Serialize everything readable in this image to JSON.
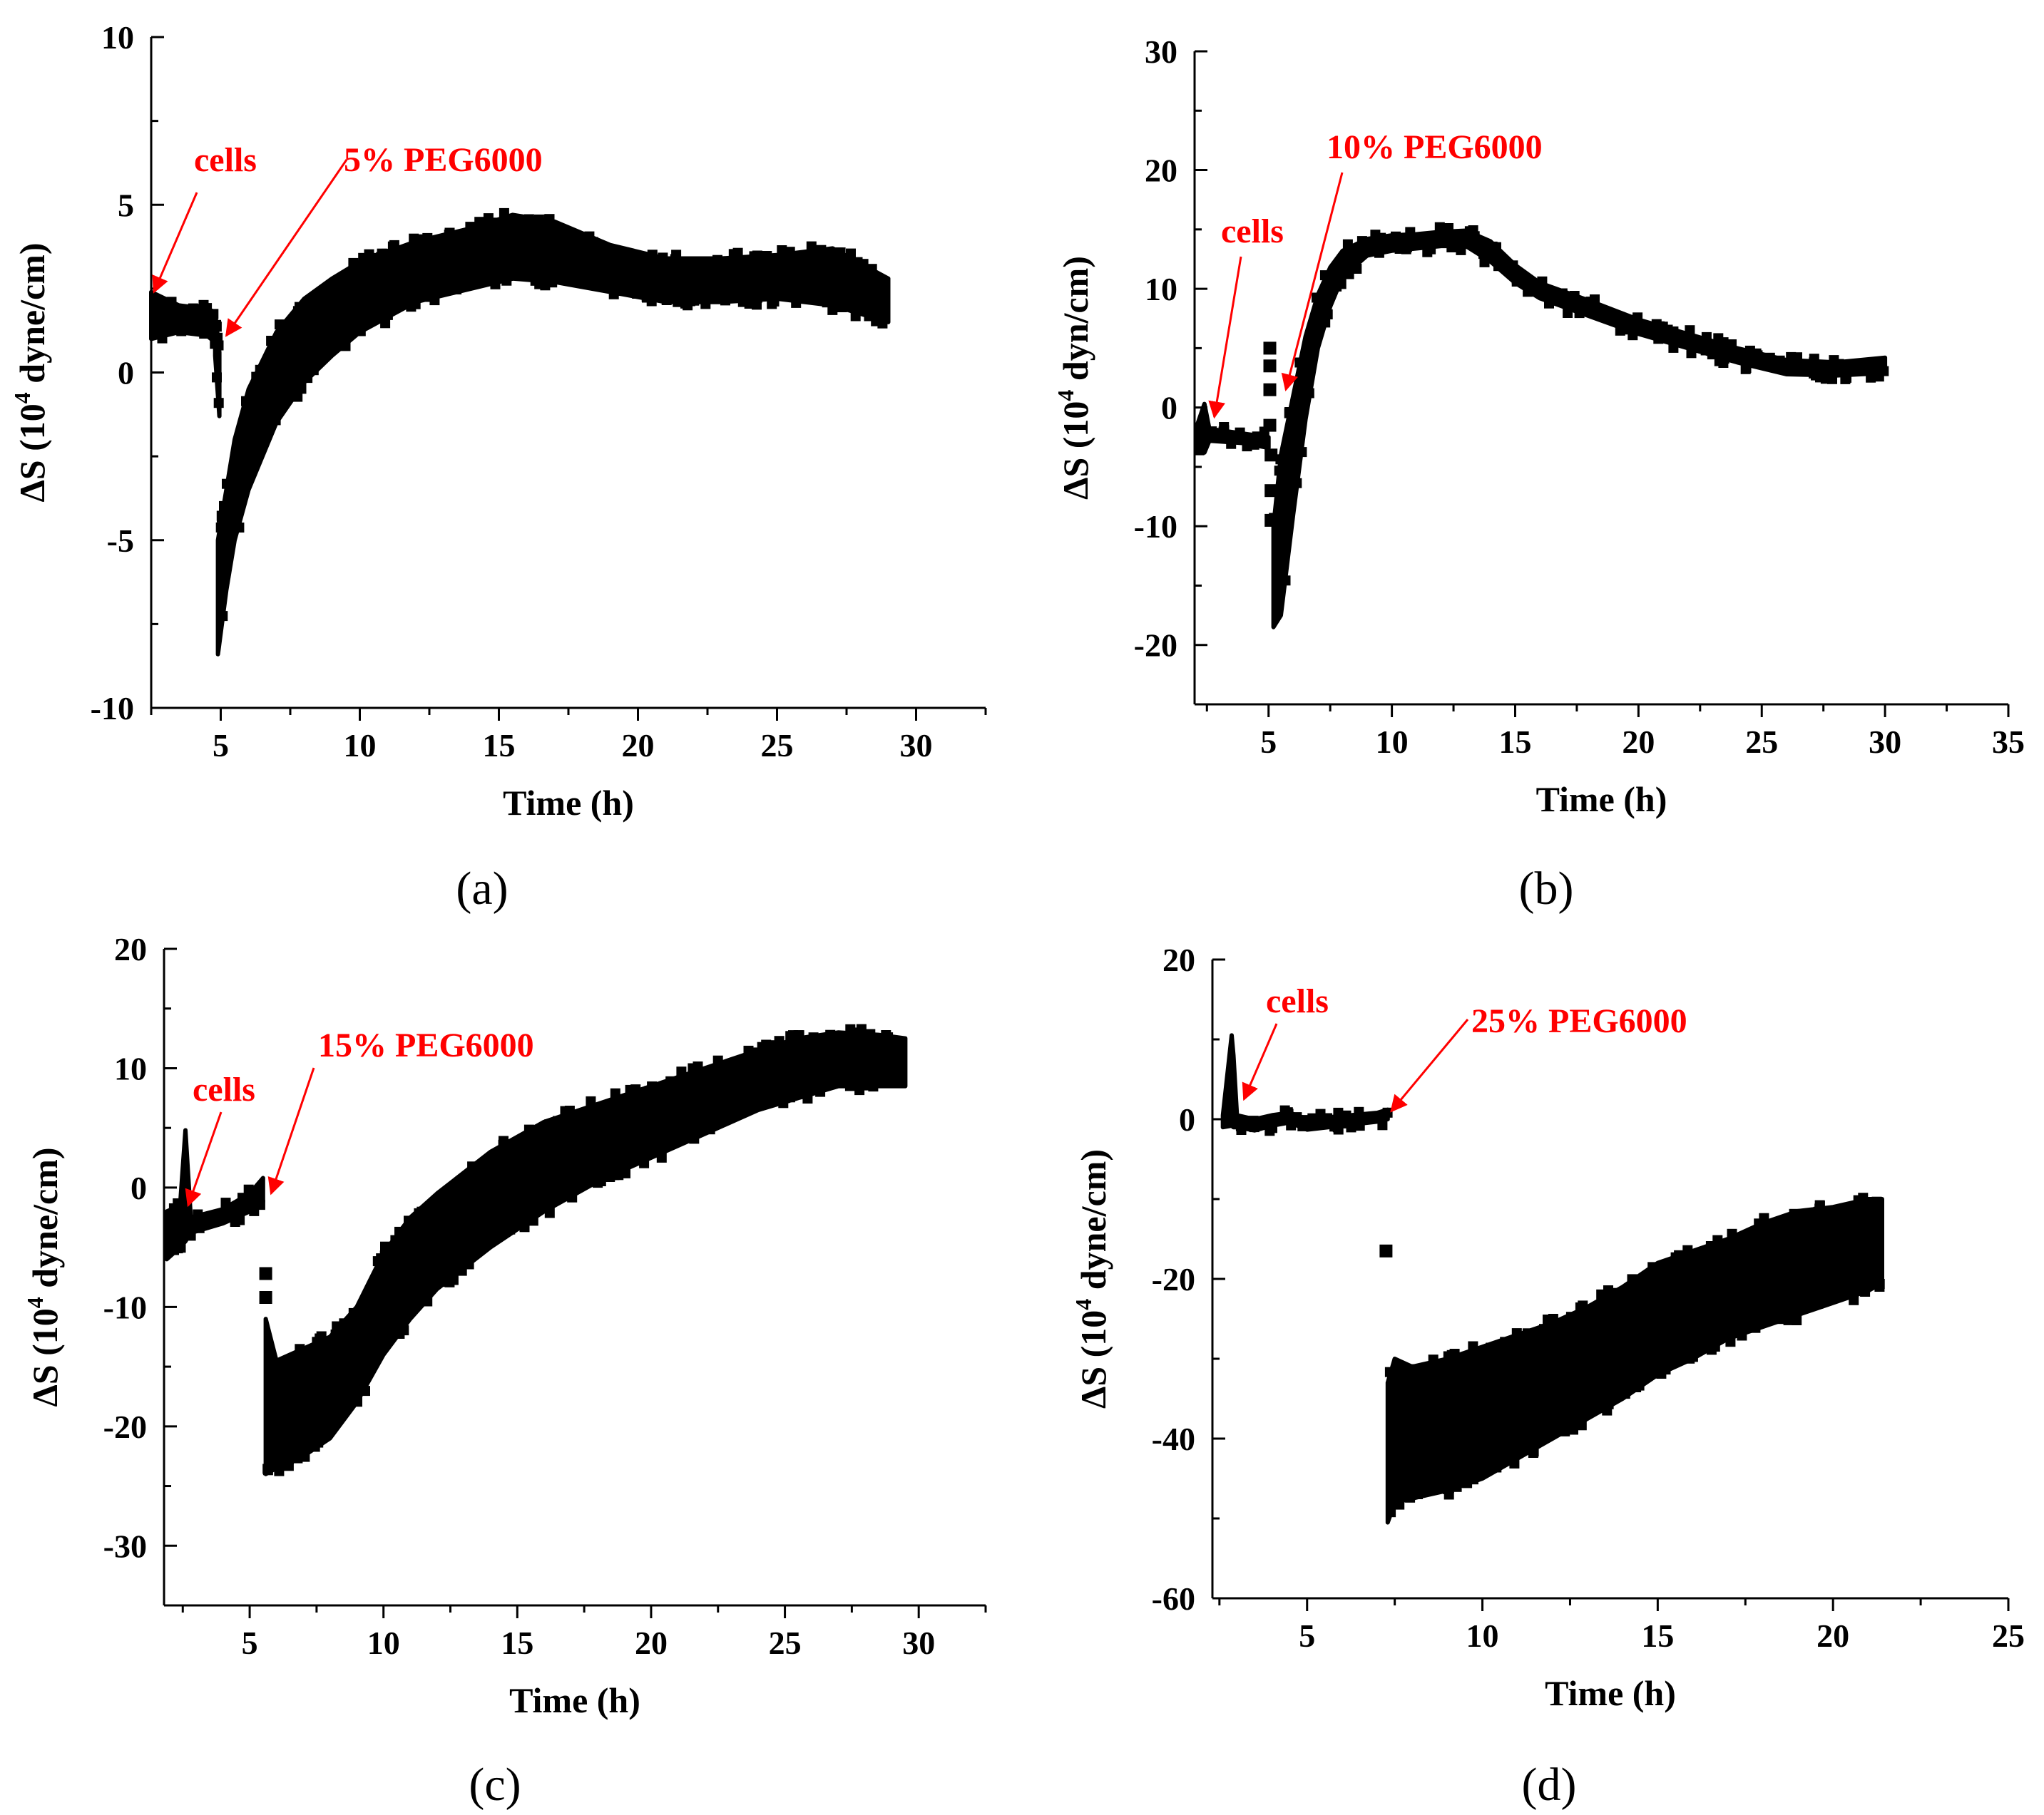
{
  "colors": {
    "data": "#000000",
    "annotation": "#ff0000",
    "axis": "#000000"
  },
  "chart_data": [
    {
      "type": "scatter",
      "caption": "(a)",
      "xlabel": "Time (h)",
      "ylabel": {
        "prefix": "ΔS (10",
        "sup": "4",
        "suffix": " dyne/cm)"
      },
      "xlim": [
        2.5,
        32.5
      ],
      "ylim": [
        -10,
        10
      ],
      "xticks": [
        5,
        10,
        15,
        20,
        25,
        30
      ],
      "yticks": [
        -10,
        -5,
        0,
        5,
        10
      ],
      "annotations": [
        {
          "text": "cells",
          "x": 2.6,
          "y": 2.4
        },
        {
          "text": "5% PEG6000",
          "x": 5.2,
          "y": 1.1
        }
      ],
      "segments": [
        {
          "kind": "band",
          "x": [
            2.5,
            3.5,
            4.5,
            4.8
          ],
          "lo": [
            1.0,
            1.2,
            1.1,
            0.9
          ],
          "hi": [
            2.4,
            2.0,
            1.9,
            1.8
          ]
        },
        {
          "kind": "band",
          "x": [
            4.8,
            4.95
          ],
          "lo": [
            0.5,
            -1.3
          ],
          "hi": [
            1.8,
            0.6
          ]
        },
        {
          "kind": "band",
          "x": [
            4.9,
            5.2,
            5.5,
            6.0,
            7.0,
            8.0,
            9.0,
            10.0,
            12.0,
            14.0,
            15.5,
            17.0,
            19.0,
            21.0,
            23.0,
            25.0,
            27.0,
            29.0
          ],
          "lo": [
            -8.4,
            -6.5,
            -5.0,
            -3.5,
            -1.5,
            -0.3,
            0.5,
            1.2,
            2.1,
            2.5,
            2.8,
            2.7,
            2.4,
            2.1,
            2.1,
            2.2,
            2.0,
            1.5
          ],
          "hi": [
            -5.0,
            -3.5,
            -2.0,
            -0.5,
            1.2,
            2.2,
            2.8,
            3.3,
            3.9,
            4.3,
            4.7,
            4.5,
            3.8,
            3.4,
            3.4,
            3.5,
            3.7,
            2.8
          ]
        }
      ]
    },
    {
      "type": "scatter",
      "caption": "(b)",
      "xlabel": "Time (h)",
      "ylabel": {
        "prefix": "ΔS (10",
        "sup": "4",
        "suffix": " dyn/cm)"
      },
      "xlim": [
        2,
        35
      ],
      "ylim": [
        -25,
        30
      ],
      "xticks": [
        5,
        10,
        15,
        20,
        25,
        30,
        35
      ],
      "yticks": [
        -20,
        -10,
        0,
        10,
        20,
        30
      ],
      "annotations": [
        {
          "text": "cells",
          "x": 2.8,
          "y": -0.8
        },
        {
          "text": "10% PEG6000",
          "x": 5.7,
          "y": 1.5
        }
      ],
      "segments": [
        {
          "kind": "band",
          "x": [
            2.1,
            2.4,
            2.6,
            4.0,
            5.0
          ],
          "lo": [
            -3.5,
            -3.8,
            -2.8,
            -3.0,
            -3.4
          ],
          "hi": [
            -1.5,
            0.3,
            -1.8,
            -2.2,
            -2.5
          ]
        },
        {
          "kind": "points",
          "x": [
            5.05,
            5.05,
            5.05,
            5.05,
            5.1,
            5.1,
            5.1
          ],
          "y": [
            5.0,
            3.5,
            1.5,
            -1.5,
            -4.0,
            -7.0,
            -9.5
          ]
        },
        {
          "kind": "band",
          "x": [
            5.2,
            5.5,
            6.0,
            6.5,
            7.0,
            7.5,
            8.0,
            9.0,
            10.0,
            11.0,
            12.0,
            13.0,
            14.0,
            15.0,
            16.0,
            18.0,
            20.0,
            22.0,
            24.0,
            26.0,
            28.0,
            30.0
          ],
          "lo": [
            -18.5,
            -17.5,
            -9.0,
            -1.0,
            5.0,
            8.5,
            11.0,
            12.8,
            13.2,
            13.4,
            13.6,
            13.6,
            12.3,
            10.5,
            9.2,
            7.7,
            6.2,
            5.0,
            3.8,
            2.8,
            2.7,
            2.9
          ],
          "hi": [
            -10.0,
            -4.0,
            1.0,
            6.0,
            9.5,
            11.8,
            13.2,
            14.2,
            14.5,
            14.6,
            14.8,
            14.9,
            14.0,
            12.0,
            10.5,
            9.0,
            7.4,
            6.2,
            5.0,
            4.0,
            3.8,
            4.2
          ]
        }
      ]
    },
    {
      "type": "scatter",
      "caption": "(c)",
      "xlabel": "Time (h)",
      "ylabel": {
        "prefix": "ΔS (10",
        "sup": "4",
        "suffix": " dyne/cm)"
      },
      "xlim": [
        1.8,
        32.5
      ],
      "ylim": [
        -35,
        20
      ],
      "xticks": [
        5,
        10,
        15,
        20,
        25,
        30
      ],
      "yticks": [
        -30,
        -20,
        -10,
        0,
        10,
        20
      ],
      "annotations": [
        {
          "text": "cells",
          "x": 2.7,
          "y": -1.5
        },
        {
          "text": "15% PEG6000",
          "x": 5.8,
          "y": -0.5
        }
      ],
      "segments": [
        {
          "kind": "band",
          "x": [
            1.9,
            2.4,
            2.6,
            2.8,
            4.0,
            5.0,
            5.5
          ],
          "lo": [
            -6.0,
            -5.0,
            -4.5,
            -3.8,
            -3.0,
            -2.0,
            -1.2
          ],
          "hi": [
            -2.0,
            -1.5,
            4.8,
            -2.5,
            -1.8,
            -0.5,
            0.8
          ]
        },
        {
          "kind": "points",
          "x": [
            5.6,
            5.6
          ],
          "y": [
            -7.2,
            -9.2
          ]
        },
        {
          "kind": "band",
          "x": [
            5.6,
            6.0,
            7.0,
            8.0,
            9.0,
            10.0,
            11.0,
            12.0,
            14.0,
            16.0,
            18.0,
            20.0,
            22.0,
            24.0,
            25.5,
            27.0,
            28.5,
            29.5
          ],
          "lo": [
            -24.0,
            -23.5,
            -22.5,
            -21.0,
            -18.0,
            -14.0,
            -11.0,
            -8.5,
            -5.0,
            -2.0,
            0.5,
            2.5,
            4.5,
            6.5,
            7.5,
            8.5,
            8.5,
            8.5
          ],
          "hi": [
            -11.0,
            -14.5,
            -13.5,
            -12.5,
            -10.0,
            -5.5,
            -2.5,
            -0.5,
            3.0,
            5.5,
            7.0,
            8.5,
            10.0,
            11.5,
            12.5,
            13.0,
            12.8,
            12.5
          ]
        }
      ]
    },
    {
      "type": "scatter",
      "caption": "(d)",
      "xlabel": "Time (h)",
      "ylabel": {
        "prefix": "ΔS (10",
        "sup": "4",
        "suffix": " dyne/cm)"
      },
      "xlim": [
        2.3,
        25
      ],
      "ylim": [
        -60,
        20
      ],
      "xticks": [
        5,
        10,
        15,
        20,
        25
      ],
      "yticks": [
        -60,
        -40,
        -20,
        0,
        20
      ],
      "annotations": [
        {
          "text": "cells",
          "x": 3.2,
          "y": 2.5
        },
        {
          "text": "25% PEG6000",
          "x": 7.4,
          "y": 1.0
        }
      ],
      "segments": [
        {
          "kind": "band",
          "x": [
            2.6,
            2.85,
            2.9,
            3.0,
            3.5,
            4.0,
            4.5,
            5.0,
            6.0,
            7.0,
            7.3
          ],
          "lo": [
            -1.0,
            -0.8,
            -1.0,
            -1.0,
            -1.4,
            -0.8,
            -0.4,
            -1.3,
            -0.8,
            -0.3,
            0.0
          ],
          "hi": [
            0.5,
            10.5,
            8.0,
            0.5,
            0.0,
            0.5,
            0.8,
            0.0,
            0.4,
            0.8,
            1.2
          ]
        },
        {
          "kind": "points",
          "x": [
            7.25
          ],
          "y": [
            -16.5
          ]
        },
        {
          "kind": "band",
          "x": [
            7.3,
            7.5,
            8.0,
            9.0,
            10.0,
            11.0,
            12.0,
            13.0,
            14.0,
            15.0,
            16.0,
            17.0,
            18.0,
            19.0,
            20.0,
            21.0,
            21.4
          ],
          "lo": [
            -50.5,
            -48.0,
            -47.5,
            -46.5,
            -45.0,
            -42.5,
            -40.0,
            -37.5,
            -35.0,
            -32.0,
            -30.0,
            -27.5,
            -26.0,
            -24.5,
            -23.0,
            -21.5,
            -20.5
          ],
          "hi": [
            -33.0,
            -30.0,
            -31.0,
            -30.0,
            -28.5,
            -27.0,
            -25.5,
            -23.5,
            -21.0,
            -18.0,
            -16.5,
            -15.0,
            -13.0,
            -11.5,
            -11.0,
            -10.0,
            -10.0
          ]
        }
      ]
    }
  ]
}
